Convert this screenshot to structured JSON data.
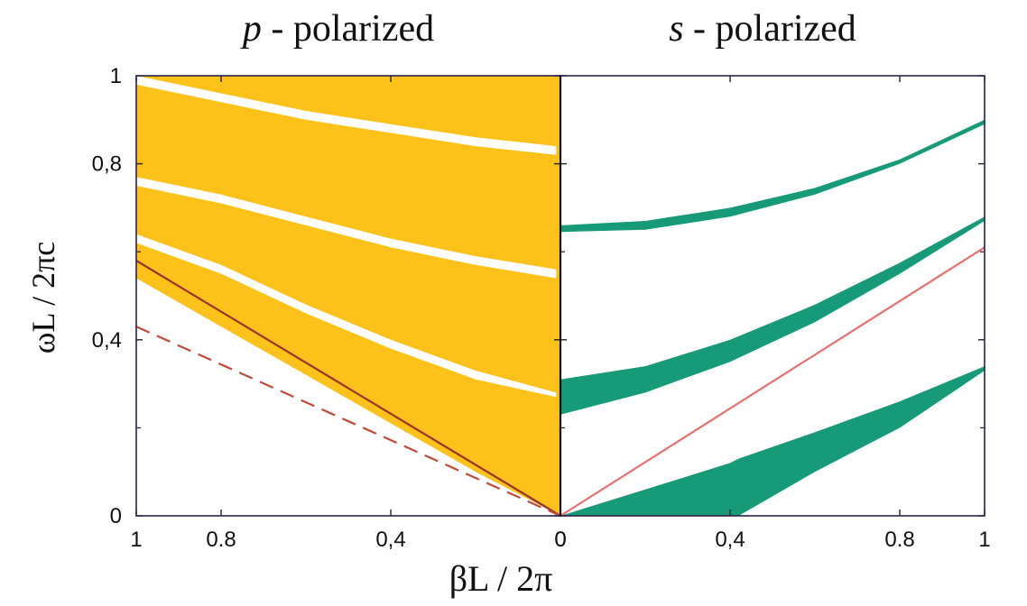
{
  "chart_data": {
    "type": "area",
    "ylabel": "ωL / 2πc",
    "xlabel": "βL / 2π",
    "ylim": [
      0,
      1
    ],
    "y_ticks": [
      "0",
      "0,4",
      "0,8",
      "1"
    ],
    "y_tick_values": [
      0,
      0.4,
      0.8,
      1
    ],
    "panels": [
      {
        "title_italic": "p",
        "title_rest": " - polarized",
        "xlim": [
          1,
          0
        ],
        "x_ticks": [
          "1",
          "0.8",
          "0,4",
          "0"
        ],
        "x_tick_values": [
          1,
          0.8,
          0.4,
          0
        ],
        "fill_color": "#FDC219",
        "regions": [
          {
            "x": [
              1,
              0.8,
              0.6,
              0.4,
              0.2,
              0
            ],
            "lower": [
              0.54,
              0.43,
              0.32,
              0.21,
              0.1,
              0
            ],
            "upper": [
              1.0,
              1.0,
              1.0,
              1.0,
              1.0,
              1.0
            ]
          }
        ],
        "gaps": [
          {
            "x": [
              1,
              0.8,
              0.6,
              0.4,
              0.2,
              0.01
            ],
            "lower": [
              0.62,
              0.55,
              0.46,
              0.38,
              0.31,
              0.27
            ],
            "upper": [
              0.64,
              0.57,
              0.48,
              0.4,
              0.33,
              0.28
            ]
          },
          {
            "x": [
              1,
              0.8,
              0.6,
              0.4,
              0.2,
              0.01
            ],
            "lower": [
              0.75,
              0.71,
              0.66,
              0.61,
              0.57,
              0.54
            ],
            "upper": [
              0.77,
              0.73,
              0.68,
              0.63,
              0.59,
              0.56
            ]
          },
          {
            "x": [
              1,
              0.8,
              0.6,
              0.4,
              0.2,
              0.01
            ],
            "lower": [
              0.98,
              0.94,
              0.9,
              0.87,
              0.84,
              0.82
            ],
            "upper": [
              1.0,
              0.96,
              0.92,
              0.89,
              0.86,
              0.84
            ]
          }
        ],
        "lines": [
          {
            "style": "solid",
            "color": "#9A3328",
            "x": [
              1,
              0
            ],
            "y": [
              0.58,
              0
            ]
          },
          {
            "style": "dashed",
            "color": "#C04A3A",
            "x": [
              1,
              0
            ],
            "y": [
              0.43,
              0
            ]
          }
        ]
      },
      {
        "title_italic": "s",
        "title_rest": " - polarized",
        "xlim": [
          0,
          1
        ],
        "x_ticks": [
          "0",
          "0,4",
          "0.8",
          "1"
        ],
        "x_tick_values": [
          0,
          0.4,
          0.8,
          1
        ],
        "fill_color": "#169A78",
        "bands": [
          {
            "x": [
              0,
              0.2,
              0.4,
              0.6,
              0.8,
              1
            ],
            "lower": [
              0.645,
              0.65,
              0.68,
              0.73,
              0.8,
              0.89
            ],
            "upper": [
              0.66,
              0.67,
              0.7,
              0.745,
              0.81,
              0.9
            ]
          },
          {
            "x": [
              0,
              0.2,
              0.4,
              0.6,
              0.8,
              1
            ],
            "lower": [
              0.23,
              0.28,
              0.35,
              0.44,
              0.55,
              0.67
            ],
            "upper": [
              0.31,
              0.34,
              0.4,
              0.48,
              0.575,
              0.68
            ]
          },
          {
            "x": [
              0,
              0.1,
              0.2,
              0.3,
              0.4,
              0.42,
              0.6,
              0.8,
              1
            ],
            "lower": [
              0,
              0,
              0,
              0,
              0,
              0,
              0.1,
              0.2,
              0.33
            ],
            "upper": [
              0,
              0.03,
              0.06,
              0.09,
              0.12,
              0.13,
              0.19,
              0.26,
              0.34
            ]
          }
        ],
        "lines": [
          {
            "style": "solid",
            "color": "#E8706F",
            "x": [
              0,
              1
            ],
            "y": [
              0,
              0.61
            ]
          }
        ]
      }
    ]
  }
}
